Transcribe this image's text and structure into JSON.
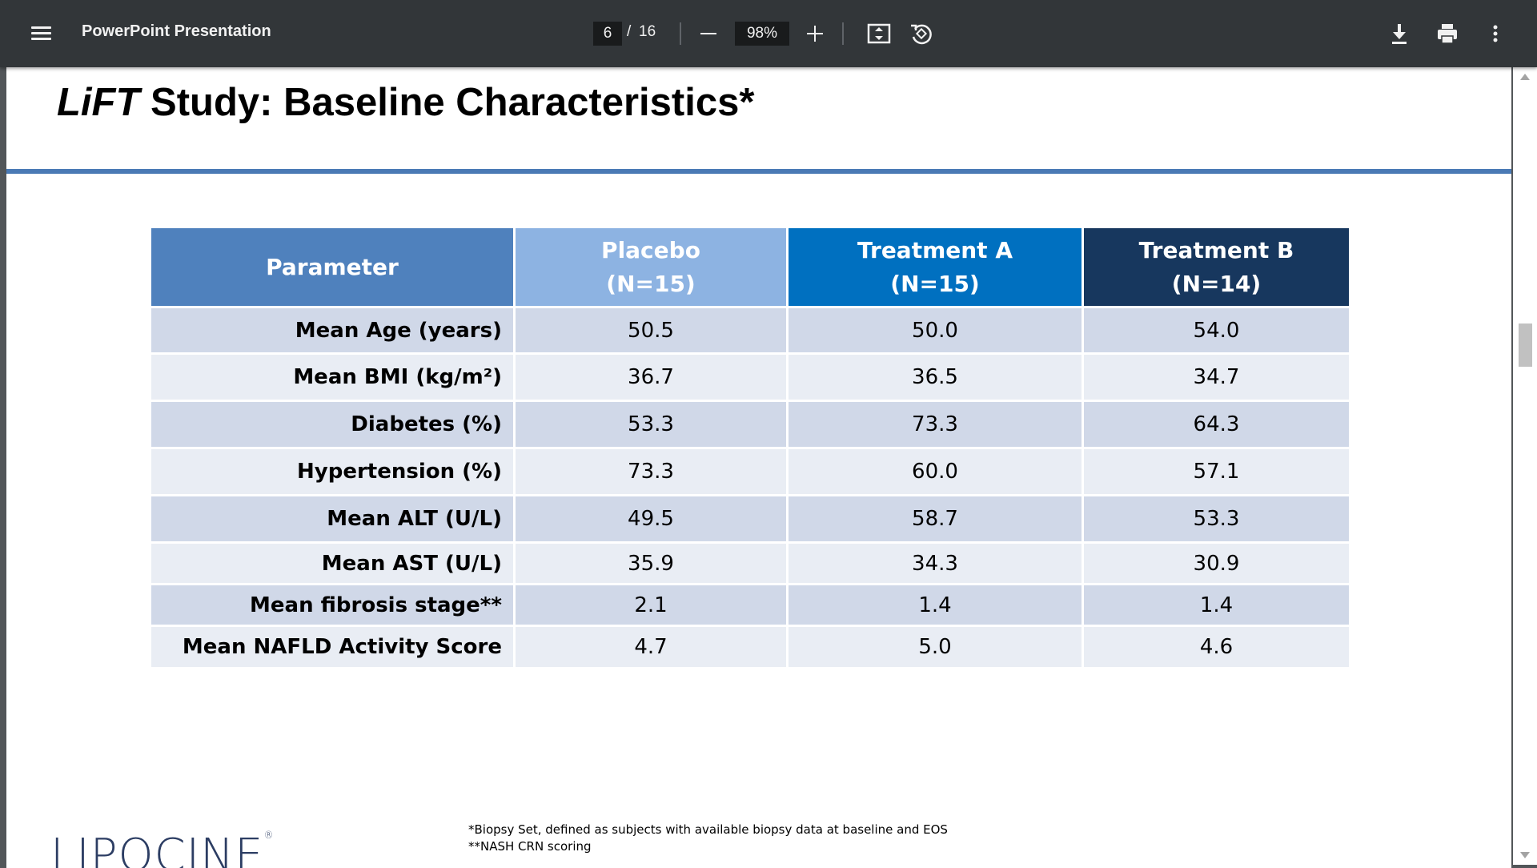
{
  "toolbar": {
    "title": "PowerPoint Presentation",
    "current_page": "6",
    "page_separator": "/",
    "total_pages": "16",
    "zoom": "98%",
    "icons": {
      "menu": "menu-icon",
      "zoom_out": "minus-icon",
      "zoom_in": "plus-icon",
      "fit": "fit-to-page-icon",
      "rotate": "rotate-icon",
      "download": "download-icon",
      "print": "print-icon",
      "more": "more-vert-icon"
    }
  },
  "slide": {
    "title_italic": "LiFT",
    "title_rest": " Study:  Baseline Characteristics*",
    "table": {
      "headers": [
        {
          "line1": "Parameter",
          "line2": ""
        },
        {
          "line1": "Placebo",
          "line2": "(N=15)"
        },
        {
          "line1": "Treatment A",
          "line2": "(N=15)"
        },
        {
          "line1": "Treatment B",
          "line2": "(N=14)"
        }
      ],
      "rows": [
        {
          "parameter": "Mean Age (years)",
          "placebo": "50.5",
          "treatment_a": "50.0",
          "treatment_b": "54.0"
        },
        {
          "parameter": "Mean BMI (kg/m²)",
          "placebo": "36.7",
          "treatment_a": "36.5",
          "treatment_b": "34.7"
        },
        {
          "parameter": "Diabetes (%)",
          "placebo": "53.3",
          "treatment_a": "73.3",
          "treatment_b": "64.3"
        },
        {
          "parameter": "Hypertension (%)",
          "placebo": "73.3",
          "treatment_a": "60.0",
          "treatment_b": "57.1"
        },
        {
          "parameter": "Mean ALT (U/L)",
          "placebo": "49.5",
          "treatment_a": "58.7",
          "treatment_b": "53.3"
        },
        {
          "parameter": "Mean AST (U/L)",
          "placebo": "35.9",
          "treatment_a": "34.3",
          "treatment_b": "30.9"
        },
        {
          "parameter": "Mean fibrosis stage**",
          "placebo": "2.1",
          "treatment_a": "1.4",
          "treatment_b": "1.4"
        },
        {
          "parameter": "Mean NAFLD Activity Score",
          "placebo": "4.7",
          "treatment_a": "5.0",
          "treatment_b": "4.6"
        }
      ]
    },
    "logo_text": "LIPOCINE",
    "logo_mark": "®",
    "footnotes": [
      "*Biopsy Set, defined as subjects with available biopsy data at baseline and EOS",
      "**NASH CRN scoring"
    ]
  },
  "colors": {
    "toolbar_bg": "#323639",
    "viewer_bg": "#525659",
    "title_rule": "#4a7ab5",
    "header_parameter": "#4f81bd",
    "header_placebo": "#8db3e2",
    "header_treatment_a": "#0070c0",
    "header_treatment_b": "#17375e",
    "row_dark": "#d0d8e8",
    "row_light": "#e9edf4"
  }
}
